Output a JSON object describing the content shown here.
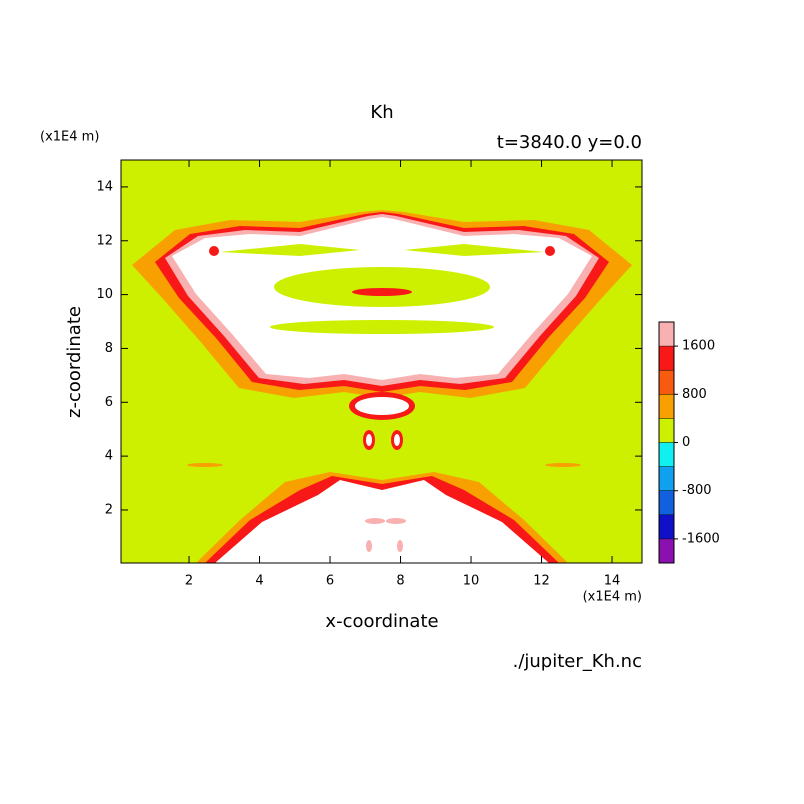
{
  "chart_data": {
    "type": "contour",
    "title": "Kh",
    "subtitle": "t=3840.0 y=0.0",
    "x_label": "x-coordinate",
    "y_label": "z-coordinate",
    "x_unit": "(x1E4 m)",
    "y_unit": "(x1E4 m)",
    "source": "./jupiter_Kh.nc",
    "xlim": [
      0.07,
      14.85
    ],
    "ylim": [
      0.03,
      15.0
    ],
    "xticks": [
      2,
      4,
      6,
      8,
      10,
      12,
      14
    ],
    "yticks": [
      2,
      4,
      6,
      8,
      10,
      12,
      14
    ],
    "colorbar": {
      "lim": [
        -2000,
        2000
      ],
      "levels": [
        -1600,
        -1200,
        -800,
        -400,
        0,
        400,
        800,
        1200,
        1600
      ],
      "ticks": [
        -1600,
        -800,
        0,
        800,
        1600
      ],
      "colors": [
        "#8a10b0",
        "#1010c8",
        "#1060e0",
        "#10a0f0",
        "#10f0f0",
        "#ccf000",
        "#f8a000",
        "#f85a10",
        "#f81818",
        "#f8b0b0"
      ]
    }
  }
}
